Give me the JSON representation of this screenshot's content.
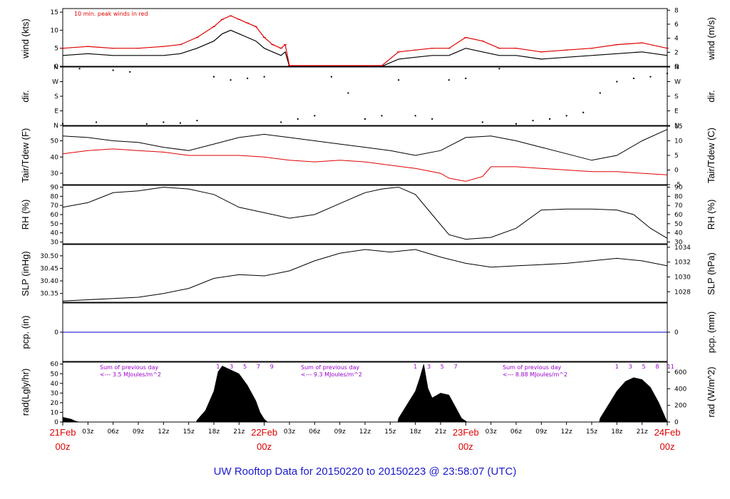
{
  "caption": "UW Rooftop Data for 20150220  to  20150223 @ 23:58:07  (UTC)",
  "colors": {
    "axis": "#000000",
    "red": "#e00000",
    "blue": "#1a1acc",
    "purple": "#9a00c8",
    "precip": "#0000cc"
  },
  "panels": {
    "wind": {
      "ylabel_left": "wind (kts)",
      "ylabel_right": "wind (m/s)",
      "ticks_left": [
        "0",
        "5",
        "10",
        "15"
      ],
      "ticks_right": [
        "0",
        "2",
        "4",
        "6",
        "8"
      ],
      "note": "10 min. peak winds in red"
    },
    "dir": {
      "ylabel_left": "dir.",
      "ylabel_right": "dir.",
      "ticks": [
        "N",
        "E",
        "S",
        "W",
        "N"
      ]
    },
    "temp": {
      "ylabel_left": "Tair/Tdew (F)",
      "ylabel_right": "Tair/Tdew (C)",
      "ticks_left": [
        "30",
        "40",
        "50"
      ],
      "ticks_right": [
        "-5",
        "0",
        "5",
        "10",
        "15"
      ]
    },
    "rh": {
      "ylabel_left": "RH (%)",
      "ylabel_right": "RH (%)",
      "ticks": [
        "30",
        "40",
        "50",
        "60",
        "70",
        "80",
        "90"
      ]
    },
    "slp": {
      "ylabel_left": "SLP (inHg)",
      "ylabel_right": "SLP (hPa)",
      "ticks_left": [
        "30.35",
        "30.40",
        "30.45",
        "30.50"
      ],
      "ticks_right": [
        "1028",
        "1030",
        "1032",
        "1034"
      ]
    },
    "pcp": {
      "ylabel_left": "pcp. (in)",
      "ylabel_right": "pcp. (mm)",
      "tick_left": "0",
      "tick_right": "0"
    },
    "rad": {
      "ylabel_left": "rad(Lgly/hr)",
      "ylabel_right": "rad (W/m^2)",
      "ticks_left": [
        "0",
        "10",
        "20",
        "30",
        "40",
        "50",
        "60"
      ],
      "ticks_right": [
        "0",
        "200",
        "400",
        "600"
      ],
      "notes": [
        {
          "title": "Sum of previous day",
          "value": "<--- 3.5 MJoules/m^2"
        },
        {
          "title": "Sum of previous day",
          "value": "<--- 9.3 MJoules/m^2"
        },
        {
          "title": "Sum of previous day",
          "value": "<--- 8.88 MJoules/m^2"
        }
      ],
      "hour_marks": [
        [
          "1",
          "3",
          "5",
          "7",
          "9"
        ],
        [
          "1",
          "3",
          "5",
          "7"
        ],
        [
          "1",
          "3",
          "5",
          "8",
          "11"
        ]
      ]
    }
  },
  "x_axis": {
    "hour_labels": [
      "03z",
      "06z",
      "09z",
      "12z",
      "15z",
      "18z",
      "21z"
    ],
    "days": [
      {
        "date": "21Feb",
        "time": "00z"
      },
      {
        "date": "22Feb",
        "time": "00z"
      },
      {
        "date": "23Feb",
        "time": "00z"
      },
      {
        "date": "24Feb",
        "time": "00z"
      }
    ]
  },
  "chart_data": [
    {
      "type": "line",
      "panel": "wind",
      "x_unit": "hours after 21Feb 00z",
      "ylim": [
        0,
        16
      ],
      "series": [
        {
          "name": "wind",
          "color": "#000000",
          "x": [
            0,
            3,
            6,
            9,
            12,
            14,
            16,
            18,
            19,
            20,
            21,
            22,
            23,
            24,
            25,
            26,
            26.5,
            27,
            28,
            30,
            33,
            36,
            38,
            40,
            42,
            44,
            46,
            48,
            50,
            52,
            54,
            57,
            60,
            63,
            66,
            69,
            72
          ],
          "y": [
            3,
            3.5,
            3,
            3,
            3,
            3.5,
            5,
            7,
            9,
            10,
            9,
            8,
            7,
            5,
            4,
            3,
            4,
            0,
            0,
            0,
            0,
            0,
            0,
            2,
            2.5,
            3,
            3,
            5,
            4,
            3,
            3,
            2,
            2.5,
            3,
            3.5,
            4,
            3
          ]
        },
        {
          "name": "10 min. peak winds",
          "color": "#e00000",
          "x": [
            0,
            3,
            6,
            9,
            12,
            14,
            16,
            18,
            19,
            20,
            21,
            22,
            23,
            24,
            25,
            26,
            26.5,
            27,
            28,
            30,
            33,
            36,
            38,
            40,
            42,
            44,
            46,
            48,
            50,
            52,
            54,
            57,
            60,
            63,
            66,
            69,
            72
          ],
          "y": [
            5,
            5.5,
            5,
            5,
            5.5,
            6,
            8,
            11,
            13,
            14,
            13,
            12,
            11,
            8,
            6,
            5,
            6,
            0.2,
            0.2,
            0.2,
            0.2,
            0.2,
            0.2,
            4,
            4.5,
            5,
            5,
            8,
            7,
            5,
            5,
            4,
            4.5,
            5,
            6,
            6.5,
            5
          ]
        }
      ]
    },
    {
      "type": "scatter",
      "panel": "dir",
      "x_unit": "hours after 21Feb 00z",
      "ylim": [
        0,
        360
      ],
      "x": [
        0,
        2,
        4,
        6,
        8,
        10,
        12,
        14,
        16,
        18,
        20,
        22,
        24,
        26,
        28,
        30,
        32,
        34,
        36,
        38,
        40,
        42,
        44,
        46,
        48,
        50,
        52,
        54,
        56,
        58,
        60,
        62,
        64,
        66,
        68,
        70,
        72
      ],
      "y": [
        10,
        350,
        20,
        340,
        330,
        10,
        20,
        15,
        30,
        300,
        280,
        290,
        300,
        20,
        40,
        60,
        300,
        200,
        40,
        60,
        280,
        60,
        40,
        280,
        290,
        20,
        350,
        10,
        30,
        40,
        60,
        80,
        200,
        270,
        290,
        300,
        320
      ]
    },
    {
      "type": "line",
      "panel": "temp",
      "x_unit": "hours after 21Feb 00z",
      "ylabel": "Tair/Tdew (F)",
      "ylim": [
        23,
        59
      ],
      "series": [
        {
          "name": "Tair",
          "color": "#000000",
          "x": [
            0,
            3,
            6,
            9,
            12,
            15,
            18,
            21,
            24,
            27,
            30,
            33,
            36,
            39,
            42,
            45,
            48,
            51,
            54,
            57,
            60,
            63,
            66,
            69,
            72
          ],
          "y": [
            53,
            52,
            50,
            49,
            46,
            44,
            48,
            52,
            54,
            52,
            50,
            48,
            46,
            44,
            41,
            44,
            52,
            53,
            50,
            46,
            42,
            38,
            41,
            50,
            57
          ]
        },
        {
          "name": "Tdew",
          "color": "#e00000",
          "x": [
            0,
            3,
            6,
            9,
            12,
            15,
            18,
            21,
            24,
            27,
            30,
            33,
            36,
            39,
            42,
            45,
            46,
            48,
            50,
            51,
            54,
            57,
            60,
            63,
            66,
            69,
            72
          ],
          "y": [
            42,
            44,
            45,
            44,
            43,
            41,
            41,
            41,
            40,
            38,
            37,
            38,
            37,
            35,
            33,
            30,
            27,
            25,
            28,
            34,
            34,
            33,
            32,
            31,
            31,
            30,
            29
          ]
        }
      ]
    },
    {
      "type": "line",
      "panel": "rh",
      "x_unit": "hours after 21Feb 00z",
      "ylabel": "RH (%)",
      "ylim": [
        28,
        92
      ],
      "series": [
        {
          "name": "RH",
          "color": "#000000",
          "x": [
            0,
            3,
            6,
            9,
            12,
            15,
            18,
            21,
            24,
            27,
            30,
            33,
            36,
            38,
            39,
            40,
            42,
            44,
            46,
            48,
            51,
            54,
            57,
            60,
            63,
            66,
            68,
            70,
            72
          ],
          "y": [
            68,
            73,
            84,
            86,
            90,
            88,
            82,
            68,
            62,
            56,
            60,
            72,
            84,
            88,
            89,
            90,
            82,
            60,
            38,
            33,
            35,
            45,
            65,
            66,
            66,
            65,
            60,
            45,
            34
          ]
        }
      ]
    },
    {
      "type": "line",
      "panel": "slp",
      "x_unit": "hours after 21Feb 00z",
      "ylabel": "SLP (inHg)",
      "ylim": [
        30.315,
        30.545
      ],
      "series": [
        {
          "name": "SLP",
          "color": "#000000",
          "x": [
            0,
            3,
            6,
            9,
            12,
            15,
            18,
            21,
            24,
            27,
            30,
            33,
            36,
            39,
            42,
            45,
            48,
            51,
            54,
            57,
            60,
            63,
            66,
            69,
            72
          ],
          "y": [
            30.32,
            30.325,
            30.33,
            30.335,
            30.35,
            30.37,
            30.41,
            30.425,
            30.42,
            30.44,
            30.48,
            30.51,
            30.525,
            30.515,
            30.525,
            30.495,
            30.47,
            30.455,
            30.46,
            30.465,
            30.47,
            30.48,
            30.49,
            30.48,
            30.46
          ]
        }
      ]
    },
    {
      "type": "line",
      "panel": "pcp",
      "x_unit": "hours after 21Feb 00z",
      "ylabel": "pcp. (in)",
      "ylim": [
        -1,
        1
      ],
      "series": [
        {
          "name": "pcp",
          "color": "#0000cc",
          "x": [
            0,
            72
          ],
          "y": [
            0,
            0
          ]
        }
      ]
    },
    {
      "type": "area",
      "panel": "rad",
      "x_unit": "hours after 21Feb 00z",
      "ylabel": "rad(Lgly/hr)",
      "ylim": [
        0,
        62
      ],
      "series": [
        {
          "name": "rad",
          "color": "#000000",
          "x": [
            0,
            0.5,
            1,
            1.5,
            2,
            15.9,
            16,
            17,
            18,
            18.5,
            19,
            20,
            21,
            22,
            23,
            23.5,
            24,
            24.4,
            24.5,
            39.9,
            40,
            41,
            42,
            42.5,
            43,
            43.5,
            44,
            45,
            46,
            47,
            47.5,
            48,
            48.2,
            48.3,
            63.9,
            64,
            65,
            66,
            67,
            68,
            69,
            70,
            71,
            72
          ],
          "y": [
            5,
            4,
            3,
            1,
            0,
            0,
            2,
            12,
            32,
            52,
            58,
            54,
            50,
            38,
            22,
            10,
            3,
            0,
            0,
            0,
            4,
            18,
            32,
            45,
            60,
            35,
            25,
            30,
            28,
            12,
            4,
            1,
            0,
            0,
            0,
            4,
            18,
            32,
            42,
            46,
            44,
            36,
            20,
            0
          ]
        }
      ]
    }
  ]
}
